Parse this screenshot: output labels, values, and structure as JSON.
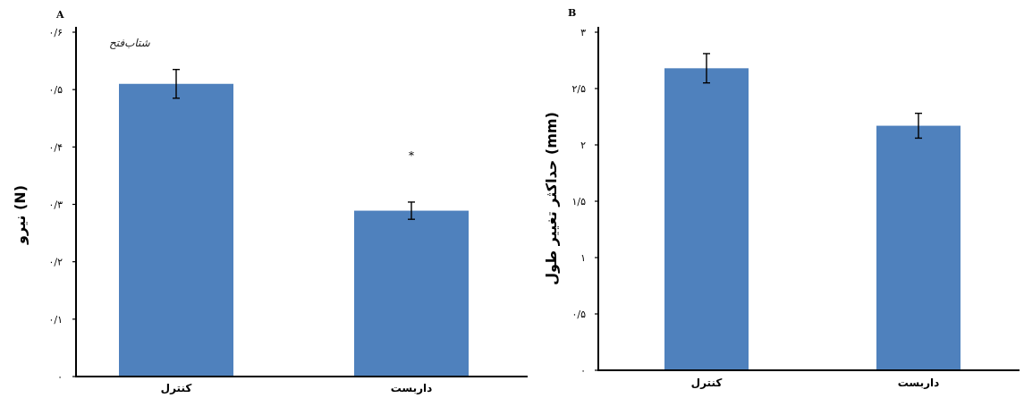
{
  "chart_data": [
    {
      "panel": "A",
      "type": "bar",
      "categories": [
        "کنترل",
        "داربست"
      ],
      "values": [
        0.51,
        0.289
      ],
      "errors": [
        0.025,
        0.015
      ],
      "ylabel": "نیرو (N)",
      "ylim": [
        0,
        0.6
      ],
      "yticks": [
        0,
        0.1,
        0.2,
        0.3,
        0.4,
        0.5,
        0.6
      ],
      "ytick_labels": [
        "٠",
        "٠/١",
        "٠/٢",
        "٠/٣",
        "٠/۴",
        "٠/۵",
        "٠/۶"
      ],
      "annotations": [
        {
          "category": "داربست",
          "text": "*"
        }
      ],
      "watermark": "شتاب‌فتح",
      "color": "#4f81bd",
      "grid": false
    },
    {
      "panel": "B",
      "type": "bar",
      "categories": [
        "کنترل",
        "داربست"
      ],
      "values": [
        2.68,
        2.17
      ],
      "errors": [
        0.13,
        0.11
      ],
      "ylabel": "حداکثر تغییر طول (mm)",
      "ylim": [
        0,
        3
      ],
      "yticks": [
        0,
        0.5,
        1,
        1.5,
        2,
        2.5,
        3
      ],
      "ytick_labels": [
        "٠",
        "٠/۵",
        "١",
        "١/۵",
        "٢",
        "٢/۵",
        "٣"
      ],
      "annotations": [],
      "color": "#4f81bd",
      "grid": false
    }
  ]
}
